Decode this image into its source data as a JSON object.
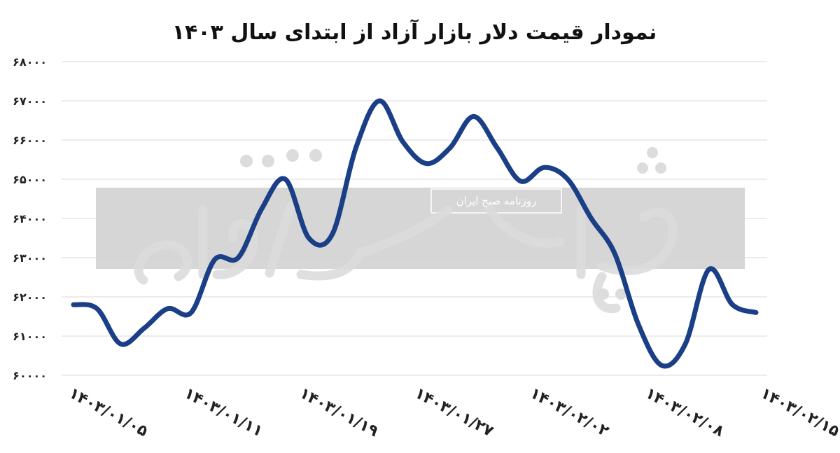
{
  "chart_data": {
    "type": "line",
    "title": "نمودار قیمت دلار بازار آزاد از ابتدای سال ۱۴۰۳",
    "xlabel": "",
    "ylabel": "",
    "ylim": [
      60000,
      68000
    ],
    "yticks": [
      60000,
      61000,
      62000,
      63000,
      64000,
      65000,
      66000,
      67000,
      68000
    ],
    "ytick_labels": [
      "۶۰۰۰۰",
      "۶۱۰۰۰",
      "۶۲۰۰۰",
      "۶۳۰۰۰",
      "۶۴۰۰۰",
      "۶۵۰۰۰",
      "۶۶۰۰۰",
      "۶۷۰۰۰",
      "۶۸۰۰۰"
    ],
    "xtick_labels": [
      "۱۴۰۳/۰۱/۰۵",
      "۱۴۰۳/۰۱/۱۱",
      "۱۴۰۳/۰۱/۱۹",
      "۱۴۰۳/۰۱/۲۷",
      "۱۴۰۳/۰۲/۰۲",
      "۱۴۰۳/۰۲/۰۸",
      "۱۴۰۳/۰۲/۱۵"
    ],
    "grid": true,
    "legend": "none",
    "series": [
      {
        "color": "#1b3f86",
        "values": [
          61800,
          61700,
          60800,
          61200,
          61700,
          61600,
          62950,
          63000,
          64250,
          65000,
          63500,
          63600,
          65800,
          67000,
          65950,
          65400,
          65800,
          66600,
          65800,
          64950,
          65300,
          65000,
          64000,
          63100,
          61300,
          60250,
          60800,
          62700,
          61800,
          61600
        ]
      }
    ]
  },
  "watermark": {
    "brand": "دنیای اقتصاد",
    "subtitle": "روزنامه صبح ایران",
    "color": "#cfcfcf"
  }
}
